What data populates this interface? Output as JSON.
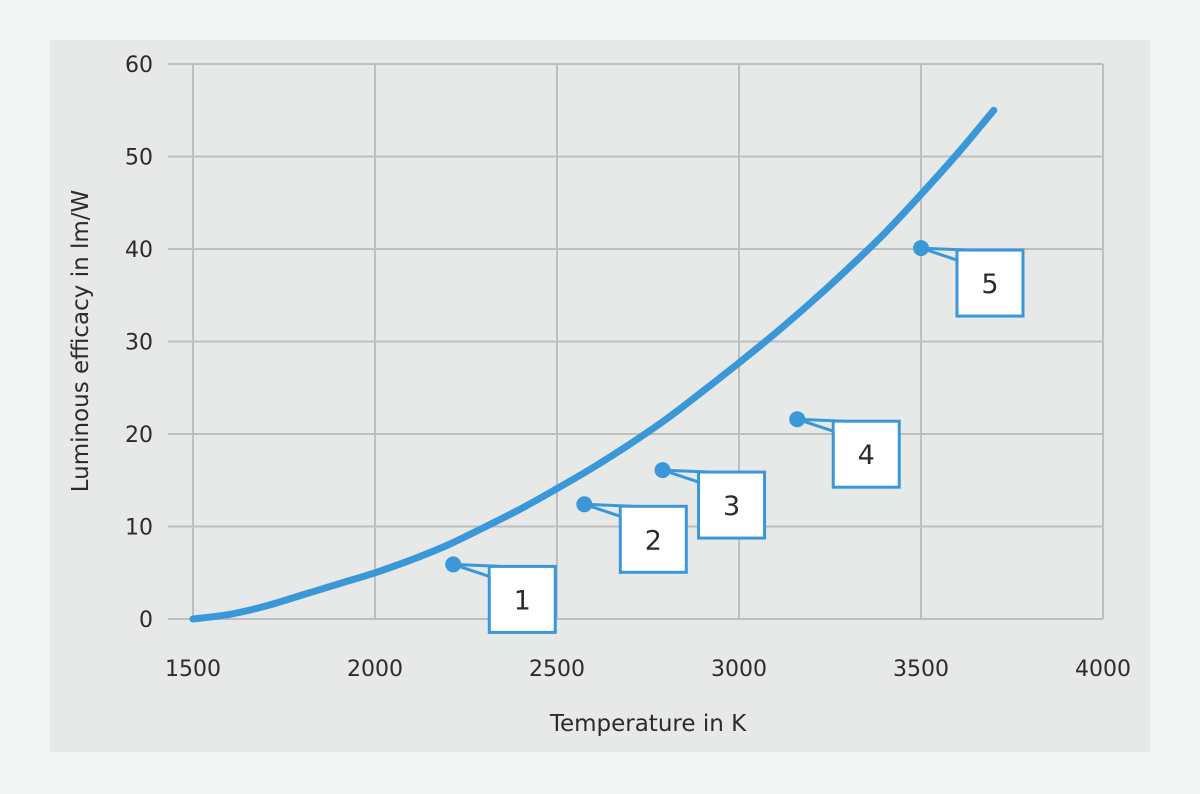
{
  "chart_data": {
    "type": "line",
    "xlabel": "Temperature in K",
    "ylabel": "Luminous efficacy in lm/W",
    "xlim": [
      1500,
      4000
    ],
    "ylim": [
      0,
      60
    ],
    "x_ticks": [
      "1500",
      "2000",
      "2500",
      "3000",
      "3500",
      "4000"
    ],
    "y_ticks": [
      "0",
      "10",
      "20",
      "30",
      "40",
      "50",
      "60"
    ],
    "grid": true,
    "curve": {
      "x": [
        1500,
        1600,
        1700,
        1800,
        1900,
        2000,
        2100,
        2200,
        2300,
        2400,
        2500,
        2600,
        2700,
        2800,
        2900,
        3000,
        3100,
        3200,
        3300,
        3400,
        3500,
        3600,
        3700
      ],
      "y": [
        0,
        0.5,
        1.4,
        2.6,
        3.8,
        5.0,
        6.4,
        8.0,
        9.9,
        11.9,
        14.1,
        16.4,
        18.9,
        21.6,
        24.6,
        27.7,
        30.9,
        34.3,
        37.9,
        41.7,
        45.9,
        50.3,
        55.0
      ],
      "color": "#3a98d8"
    },
    "points": [
      {
        "label": "1",
        "x": 2215,
        "y": 5.9
      },
      {
        "label": "2",
        "x": 2575,
        "y": 12.4
      },
      {
        "label": "3",
        "x": 2790,
        "y": 16.1
      },
      {
        "label": "4",
        "x": 3160,
        "y": 21.6
      },
      {
        "label": "5",
        "x": 3500,
        "y": 40.1
      }
    ],
    "colors": {
      "background": "#f3f4f4",
      "panel": "#e7e9e9",
      "grid": "#bdbfbf",
      "accent": "#3a98d8"
    }
  }
}
